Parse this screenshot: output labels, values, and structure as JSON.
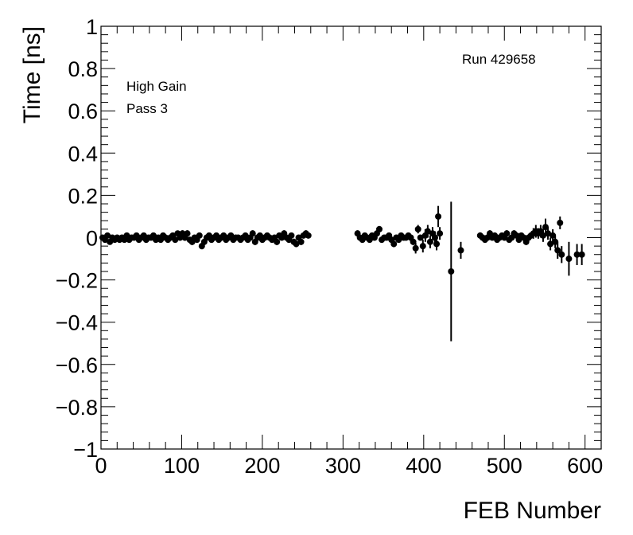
{
  "chart_data": {
    "type": "scatter",
    "title": "",
    "xlabel": "FEB Number",
    "ylabel": "Time [ns]",
    "xlim": [
      0,
      620
    ],
    "ylim": [
      -1,
      1
    ],
    "x_major_ticks": [
      0,
      100,
      200,
      300,
      400,
      500,
      600
    ],
    "x_tick_labels": [
      "0",
      "100",
      "200",
      "300",
      "400",
      "500",
      "600"
    ],
    "y_major_ticks": [
      -1,
      -0.8,
      -0.6,
      -0.4,
      -0.2,
      0,
      0.2,
      0.4,
      0.6,
      0.8,
      1
    ],
    "y_tick_labels": [
      "−1",
      "−0.8",
      "−0.6",
      "−0.4",
      "−0.2",
      "0",
      "0.2",
      "0.4",
      "0.6",
      "0.8",
      "1"
    ],
    "grid": false,
    "annotations": {
      "run": "Run 429658",
      "gain": "High Gain",
      "pass": "Pass 3"
    },
    "series": [
      {
        "marker": "circle",
        "color": "#000000",
        "points": [
          [
            2,
            0.0,
            0.01
          ],
          [
            5,
            -0.01,
            0.01
          ],
          [
            8,
            0.01,
            0.01
          ],
          [
            11,
            -0.02,
            0.01
          ],
          [
            14,
            0.0,
            0.01
          ],
          [
            17,
            -0.01,
            0.01
          ],
          [
            20,
            0.0,
            0.01
          ],
          [
            23,
            -0.01,
            0.01
          ],
          [
            26,
            0.0,
            0.01
          ],
          [
            29,
            -0.01,
            0.01
          ],
          [
            32,
            0.01,
            0.01
          ],
          [
            35,
            -0.01,
            0.01
          ],
          [
            38,
            0.0,
            0.01
          ],
          [
            41,
            0.0,
            0.01
          ],
          [
            44,
            0.01,
            0.01
          ],
          [
            47,
            -0.01,
            0.01
          ],
          [
            50,
            0.0,
            0.01
          ],
          [
            53,
            0.01,
            0.01
          ],
          [
            56,
            -0.01,
            0.01
          ],
          [
            59,
            0.0,
            0.01
          ],
          [
            62,
            0.0,
            0.01
          ],
          [
            65,
            0.01,
            0.01
          ],
          [
            68,
            -0.01,
            0.01
          ],
          [
            71,
            0.0,
            0.01
          ],
          [
            74,
            -0.01,
            0.01
          ],
          [
            77,
            0.01,
            0.01
          ],
          [
            80,
            0.0,
            0.01
          ],
          [
            83,
            -0.01,
            0.01
          ],
          [
            86,
            0.0,
            0.01
          ],
          [
            89,
            0.01,
            0.01
          ],
          [
            92,
            -0.01,
            0.01
          ],
          [
            95,
            0.02,
            0.01
          ],
          [
            98,
            0.0,
            0.01
          ],
          [
            101,
            0.02,
            0.015
          ],
          [
            104,
            0.0,
            0.015
          ],
          [
            107,
            0.02,
            0.015
          ],
          [
            110,
            -0.01,
            0.01
          ],
          [
            113,
            -0.02,
            0.015
          ],
          [
            116,
            0.0,
            0.01
          ],
          [
            119,
            -0.01,
            0.01
          ],
          [
            122,
            0.01,
            0.01
          ],
          [
            125,
            -0.04,
            0.015
          ],
          [
            128,
            -0.02,
            0.015
          ],
          [
            131,
            0.0,
            0.01
          ],
          [
            134,
            0.01,
            0.01
          ],
          [
            137,
            -0.01,
            0.01
          ],
          [
            140,
            0.0,
            0.01
          ],
          [
            143,
            0.01,
            0.01
          ],
          [
            146,
            -0.01,
            0.01
          ],
          [
            149,
            0.0,
            0.01
          ],
          [
            152,
            0.01,
            0.01
          ],
          [
            155,
            -0.01,
            0.01
          ],
          [
            158,
            0.0,
            0.01
          ],
          [
            161,
            0.01,
            0.01
          ],
          [
            164,
            -0.01,
            0.01
          ],
          [
            167,
            0.0,
            0.01
          ],
          [
            170,
            0.0,
            0.01
          ],
          [
            173,
            -0.01,
            0.01
          ],
          [
            176,
            0.0,
            0.01
          ],
          [
            179,
            0.01,
            0.01
          ],
          [
            182,
            -0.01,
            0.01
          ],
          [
            185,
            0.0,
            0.01
          ],
          [
            188,
            0.02,
            0.015
          ],
          [
            191,
            -0.02,
            0.015
          ],
          [
            194,
            0.0,
            0.01
          ],
          [
            197,
            0.01,
            0.01
          ],
          [
            200,
            -0.01,
            0.01
          ],
          [
            203,
            0.0,
            0.01
          ],
          [
            206,
            0.01,
            0.01
          ],
          [
            209,
            0.0,
            0.01
          ],
          [
            212,
            -0.01,
            0.01
          ],
          [
            215,
            0.0,
            0.01
          ],
          [
            218,
            -0.02,
            0.015
          ],
          [
            221,
            0.01,
            0.01
          ],
          [
            224,
            0.0,
            0.01
          ],
          [
            227,
            0.02,
            0.015
          ],
          [
            230,
            0.0,
            0.01
          ],
          [
            233,
            -0.01,
            0.01
          ],
          [
            236,
            0.01,
            0.01
          ],
          [
            239,
            -0.02,
            0.015
          ],
          [
            242,
            -0.03,
            0.015
          ],
          [
            245,
            0.0,
            0.01
          ],
          [
            248,
            -0.02,
            0.015
          ],
          [
            251,
            0.01,
            0.01
          ],
          [
            254,
            0.02,
            0.015
          ],
          [
            257,
            0.01,
            0.01
          ],
          [
            318,
            0.02,
            0.015
          ],
          [
            321,
            0.0,
            0.01
          ],
          [
            324,
            -0.01,
            0.01
          ],
          [
            327,
            0.01,
            0.01
          ],
          [
            330,
            0.0,
            0.01
          ],
          [
            333,
            -0.01,
            0.01
          ],
          [
            336,
            0.01,
            0.01
          ],
          [
            339,
            0.0,
            0.01
          ],
          [
            342,
            0.02,
            0.015
          ],
          [
            345,
            0.04,
            0.015
          ],
          [
            348,
            -0.01,
            0.01
          ],
          [
            351,
            0.0,
            0.01
          ],
          [
            354,
            0.0,
            0.01
          ],
          [
            357,
            0.01,
            0.01
          ],
          [
            360,
            -0.01,
            0.01
          ],
          [
            363,
            -0.03,
            0.015
          ],
          [
            366,
            0.0,
            0.01
          ],
          [
            369,
            -0.01,
            0.01
          ],
          [
            372,
            0.01,
            0.01
          ],
          [
            375,
            0.0,
            0.01
          ],
          [
            378,
            0.0,
            0.01
          ],
          [
            381,
            0.01,
            0.01
          ],
          [
            384,
            0.0,
            0.01
          ],
          [
            387,
            -0.02,
            0.015
          ],
          [
            390,
            -0.05,
            0.025
          ],
          [
            393,
            0.04,
            0.02
          ],
          [
            396,
            0.0,
            0.01
          ],
          [
            399,
            -0.04,
            0.03
          ],
          [
            402,
            0.01,
            0.03
          ],
          [
            405,
            0.03,
            0.03
          ],
          [
            408,
            -0.02,
            0.03
          ],
          [
            411,
            0.02,
            0.03
          ],
          [
            414,
            0.0,
            0.03
          ],
          [
            416,
            -0.03,
            0.03
          ],
          [
            418,
            0.1,
            0.05
          ],
          [
            420,
            0.02,
            0.03
          ],
          [
            434,
            -0.16,
            0.33
          ],
          [
            446,
            -0.06,
            0.04
          ],
          [
            470,
            0.01,
            0.015
          ],
          [
            473,
            0.0,
            0.01
          ],
          [
            476,
            -0.01,
            0.01
          ],
          [
            479,
            0.0,
            0.01
          ],
          [
            482,
            0.02,
            0.015
          ],
          [
            485,
            0.0,
            0.01
          ],
          [
            488,
            0.01,
            0.01
          ],
          [
            491,
            -0.01,
            0.01
          ],
          [
            494,
            0.0,
            0.01
          ],
          [
            497,
            0.01,
            0.01
          ],
          [
            500,
            0.0,
            0.01
          ],
          [
            503,
            0.02,
            0.015
          ],
          [
            506,
            -0.01,
            0.01
          ],
          [
            509,
            0.0,
            0.01
          ],
          [
            512,
            0.02,
            0.015
          ],
          [
            515,
            0.01,
            0.01
          ],
          [
            518,
            -0.01,
            0.01
          ],
          [
            521,
            0.01,
            0.01
          ],
          [
            524,
            0.0,
            0.01
          ],
          [
            527,
            -0.02,
            0.015
          ],
          [
            530,
            0.0,
            0.01
          ],
          [
            533,
            0.01,
            0.015
          ],
          [
            536,
            0.02,
            0.025
          ],
          [
            539,
            0.03,
            0.03
          ],
          [
            542,
            0.02,
            0.025
          ],
          [
            545,
            0.03,
            0.03
          ],
          [
            548,
            0.01,
            0.03
          ],
          [
            551,
            0.05,
            0.04
          ],
          [
            554,
            0.02,
            0.03
          ],
          [
            557,
            -0.03,
            0.03
          ],
          [
            560,
            0.01,
            0.03
          ],
          [
            563,
            -0.02,
            0.03
          ],
          [
            566,
            -0.06,
            0.04
          ],
          [
            569,
            0.07,
            0.03
          ],
          [
            571,
            -0.08,
            0.04
          ],
          [
            580,
            -0.1,
            0.08
          ],
          [
            590,
            -0.08,
            0.05
          ],
          [
            596,
            -0.08,
            0.05
          ]
        ]
      }
    ]
  }
}
